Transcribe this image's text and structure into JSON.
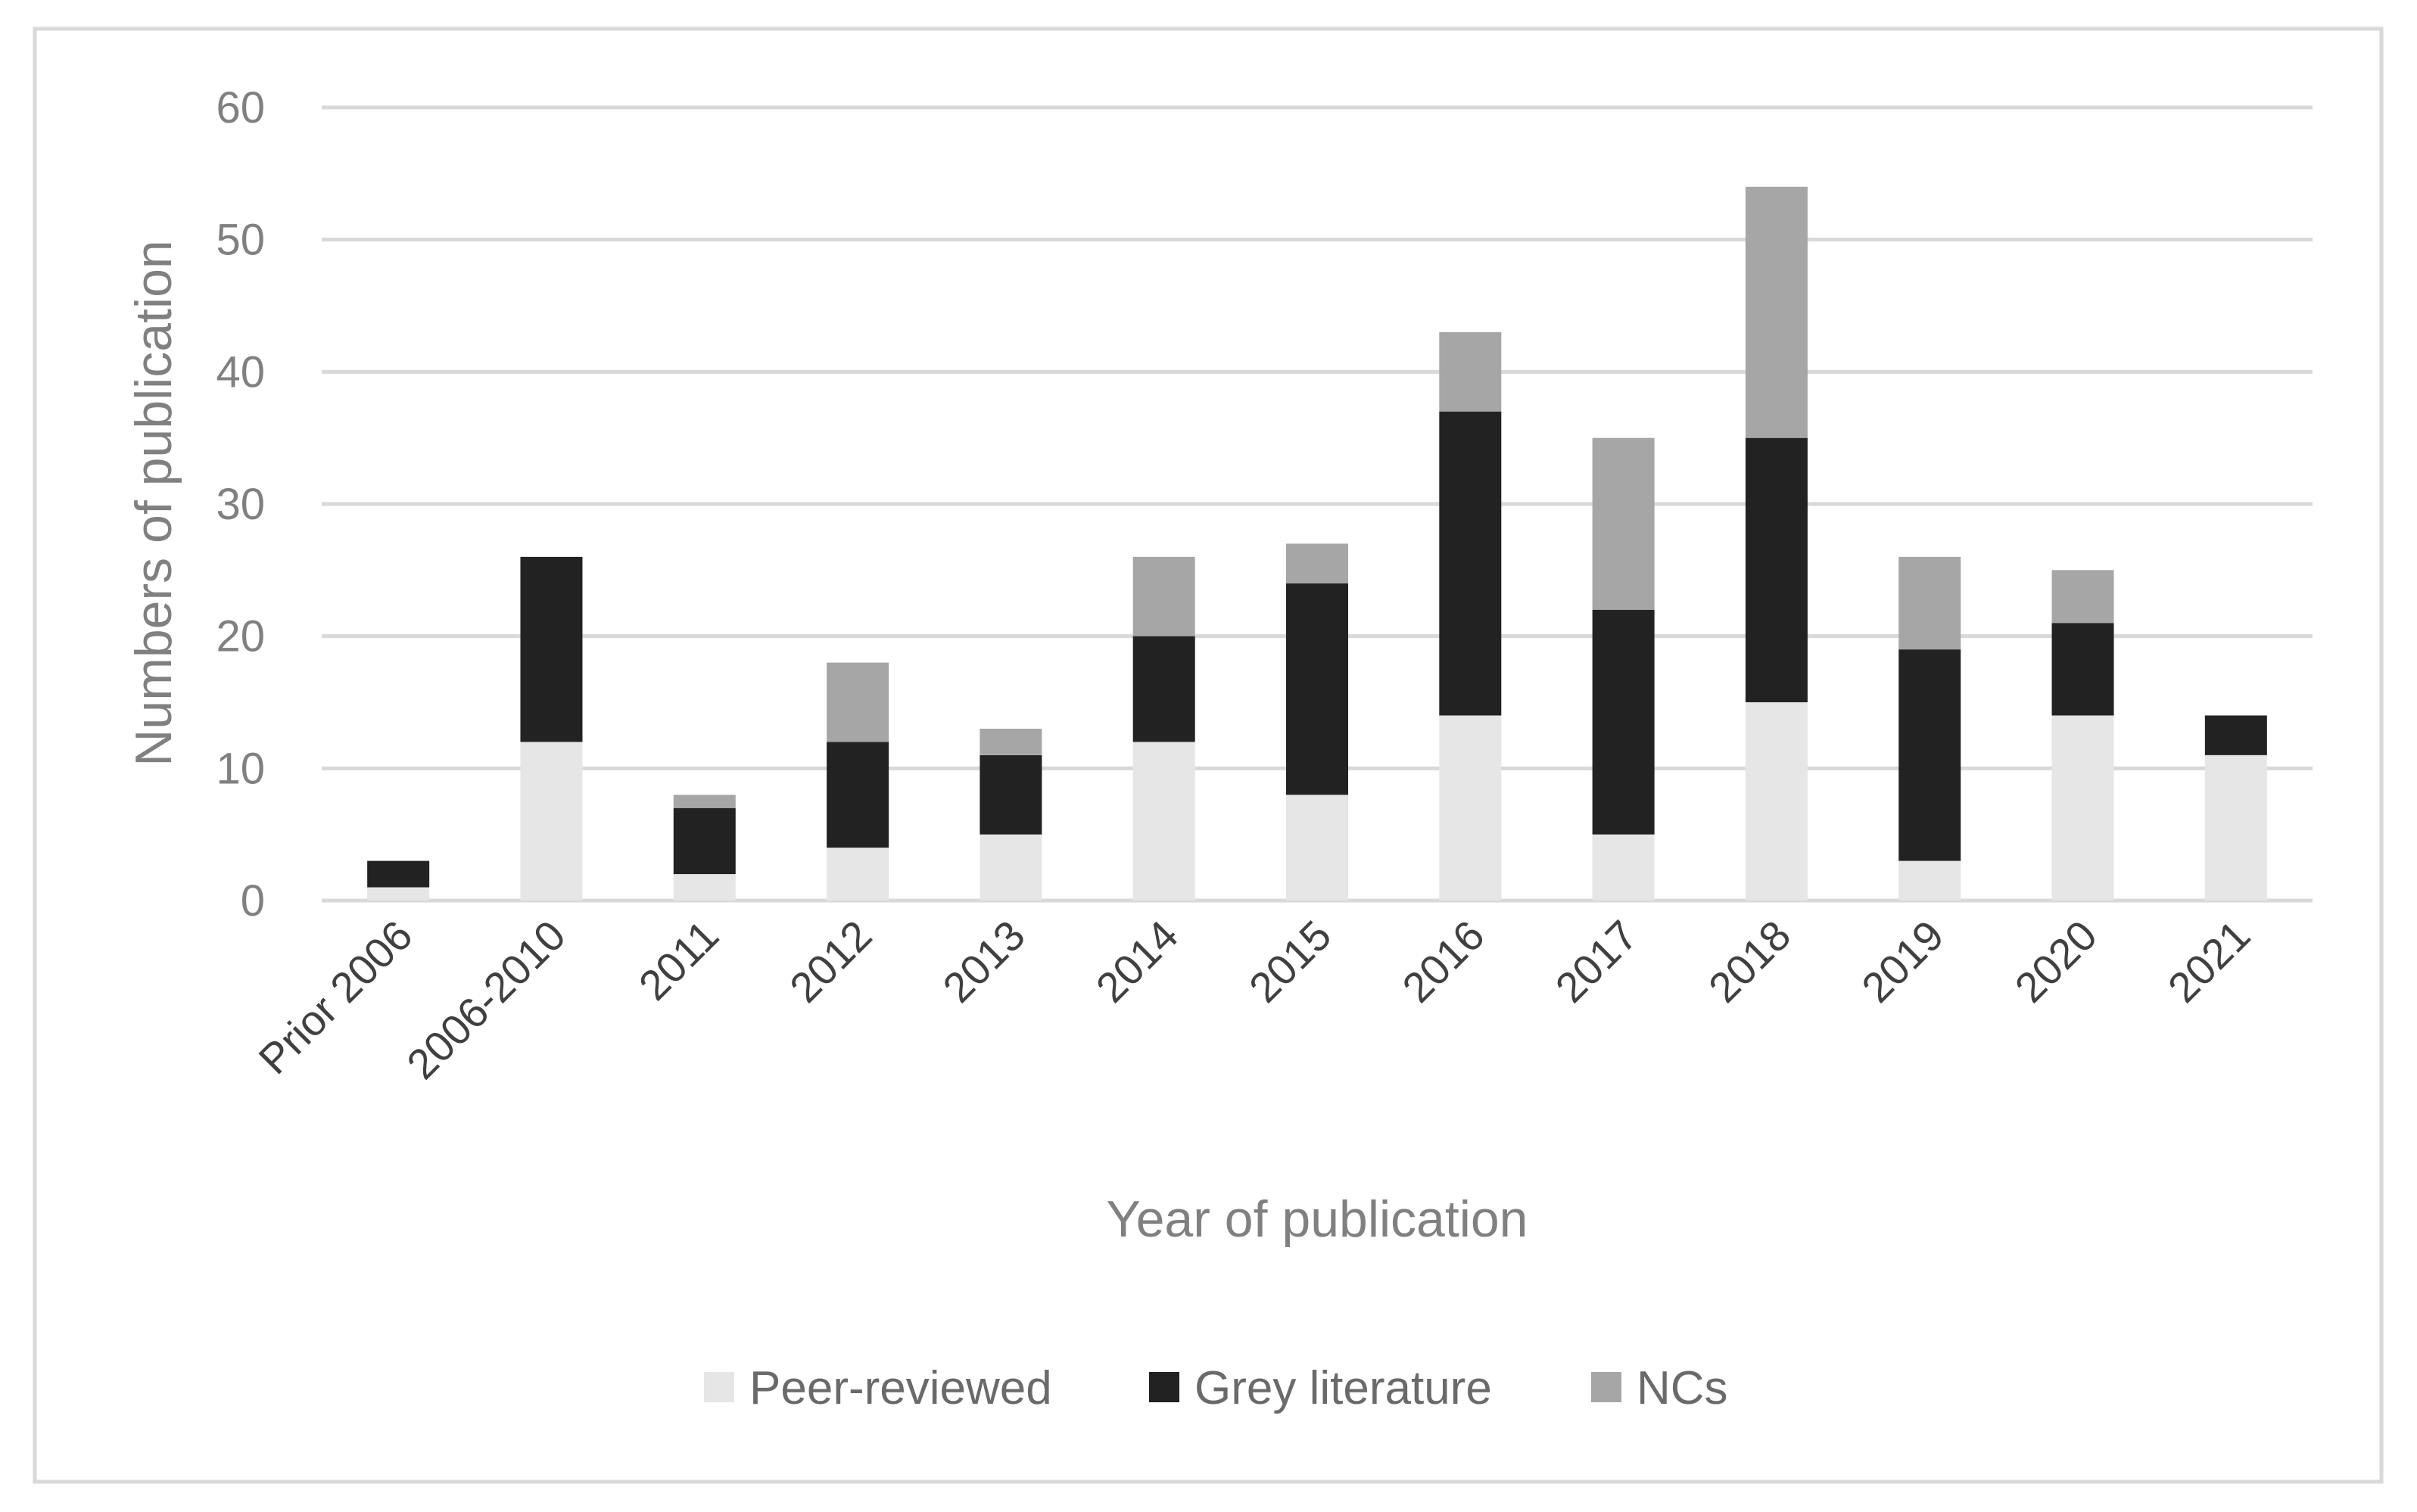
{
  "chart_data": {
    "type": "bar",
    "stacked": true,
    "title": "",
    "xlabel": "Year of publication",
    "ylabel": "Numbers of publication",
    "ylim": [
      0,
      60
    ],
    "yticks": [
      0,
      10,
      20,
      30,
      40,
      50,
      60
    ],
    "grid": true,
    "legend_position": "bottom",
    "categories": [
      "Prior 2006",
      "2006-2010",
      "2011",
      "2012",
      "2013",
      "2014",
      "2015",
      "2016",
      "2017",
      "2018",
      "2019",
      "2020",
      "2021"
    ],
    "series": [
      {
        "name": "Peer-reviewed",
        "color": "#e6e6e6",
        "values": [
          1,
          12,
          2,
          4,
          5,
          12,
          8,
          14,
          5,
          15,
          3,
          14,
          11
        ]
      },
      {
        "name": "Grey literature",
        "color": "#222222",
        "values": [
          2,
          14,
          5,
          8,
          6,
          8,
          16,
          23,
          17,
          20,
          16,
          7,
          3
        ]
      },
      {
        "name": "NCs",
        "color": "#a6a6a6",
        "values": [
          0,
          0,
          1,
          6,
          2,
          6,
          3,
          6,
          13,
          19,
          7,
          4,
          0
        ]
      }
    ]
  },
  "colors": {
    "frame": "#d9d9d9",
    "gridline": "#d9d9d9"
  }
}
